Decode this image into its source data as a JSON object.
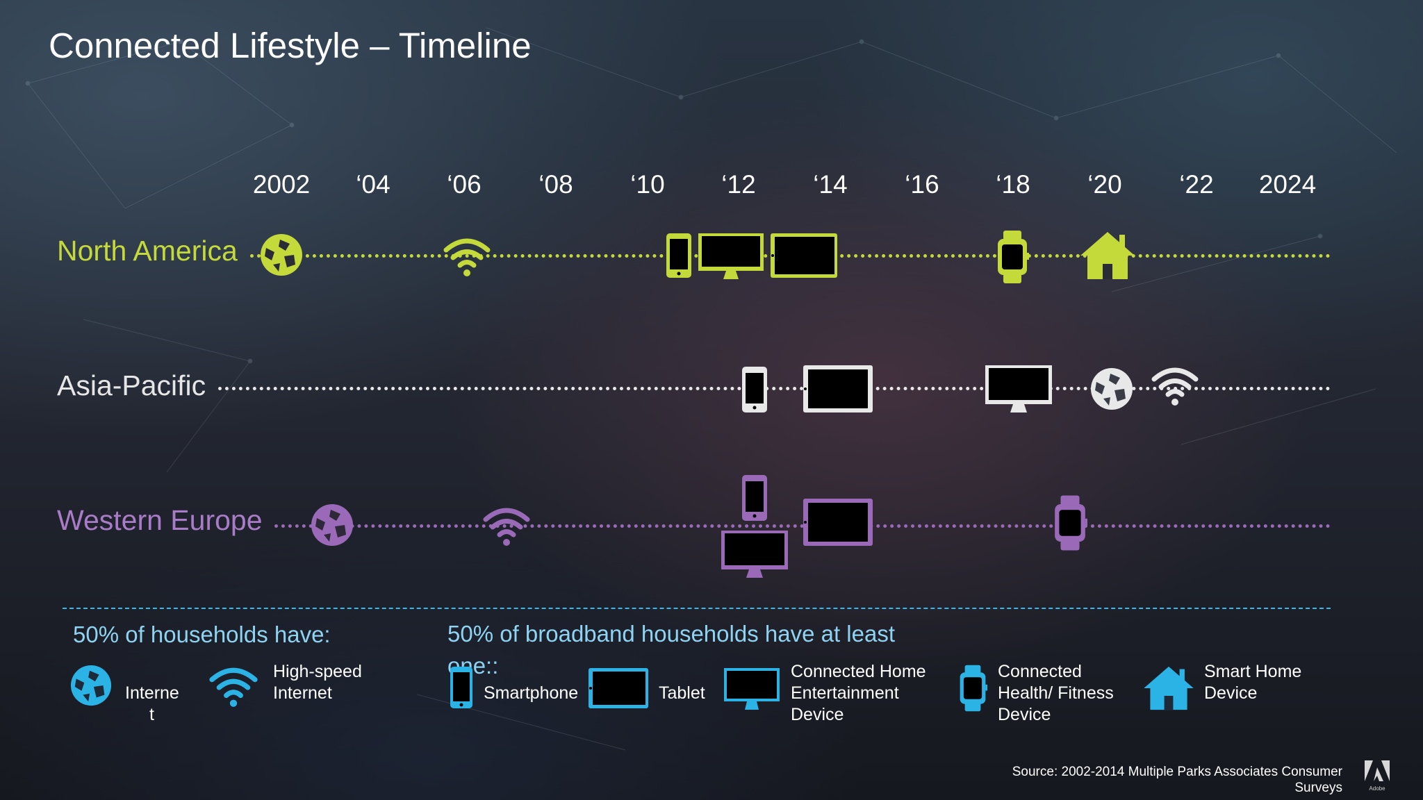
{
  "title": "Connected Lifestyle – Timeline",
  "years": [
    "2002",
    "‘04",
    "‘06",
    "‘08",
    "‘10",
    "‘12",
    "‘14",
    "‘16",
    "‘18",
    "‘20",
    "‘22",
    "2024"
  ],
  "regions": {
    "north_america": "North America",
    "asia_pacific": "Asia-Pacific",
    "western_europe": "Western Europe"
  },
  "colors": {
    "north_america": "#c4d93a",
    "asia_pacific": "#e8e8e8",
    "western_europe": "#9a6ab8",
    "legend": "#2bb3e6"
  },
  "milestones": {
    "north_america": [
      "internet",
      "high-speed-internet",
      "smartphone",
      "connected-home-entertainment",
      "tablet",
      "connected-health-fitness",
      "smart-home"
    ],
    "asia_pacific": [
      "smartphone",
      "tablet",
      "connected-home-entertainment",
      "internet",
      "high-speed-internet"
    ],
    "western_europe": [
      "internet",
      "high-speed-internet",
      "smartphone",
      "connected-home-entertainment",
      "tablet",
      "connected-health-fitness"
    ]
  },
  "legend": {
    "heading_households": "50% of households have:",
    "heading_broadband": "50% of broadband households have at least one::",
    "internet_label_1": "Interne",
    "internet_label_2": "t",
    "highspeed_label_1": "High-speed",
    "highspeed_label_2": "Internet",
    "smartphone_label": "Smartphone",
    "tablet_label": "Tablet",
    "entertainment_label_1": "Connected Home",
    "entertainment_label_2": "Entertainment",
    "entertainment_label_3": "Device",
    "health_label_1": "Connected",
    "health_label_2": "Health/ Fitness",
    "health_label_3": "Device",
    "smarthome_label_1": "Smart Home",
    "smarthome_label_2": "Device"
  },
  "source_line_1": "Source: 2002-2014 Multiple  Parks Associates Consumer",
  "source_line_2": "Surveys",
  "logo_text": "Adobe"
}
